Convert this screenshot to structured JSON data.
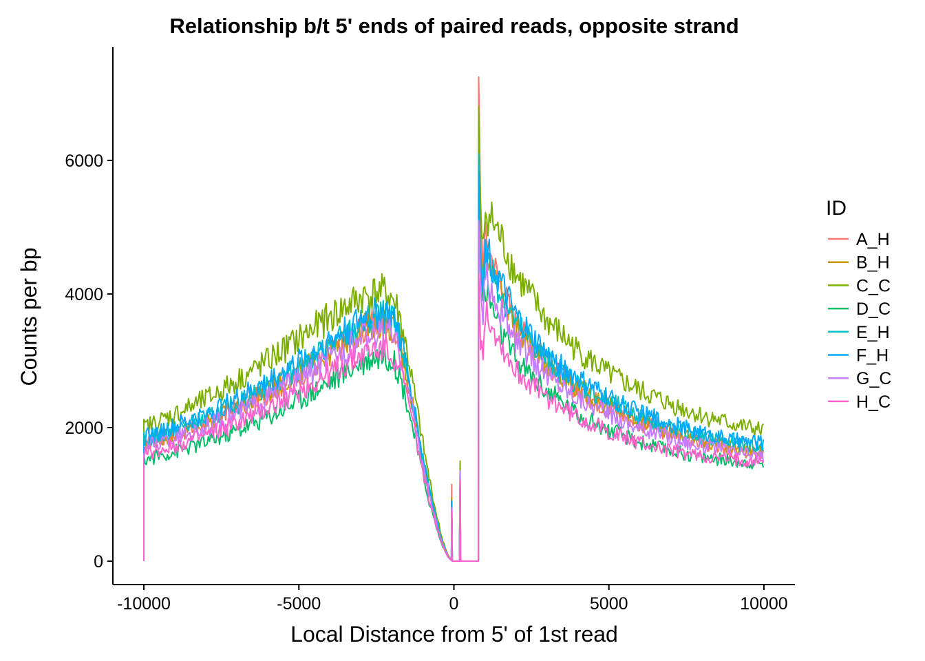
{
  "chart_data": {
    "type": "line",
    "title": "Relationship b/t 5' ends of paired reads, opposite strand",
    "xlabel": "Local Distance from 5' of 1st read",
    "ylabel": "Counts per bp",
    "xlim": [
      -11000,
      11000
    ],
    "ylim": [
      -350,
      7700
    ],
    "xticks": [
      -10000,
      -5000,
      0,
      5000,
      10000
    ],
    "xtick_labels": [
      "-10000",
      "-5000",
      "0",
      "5000",
      "10000"
    ],
    "yticks": [
      0,
      2000,
      4000,
      6000
    ],
    "ytick_labels": [
      "0",
      "2000",
      "4000",
      "6000"
    ],
    "grid": false,
    "legend": {
      "title": "ID",
      "position": "right"
    },
    "x": [
      -10000,
      -9000,
      -8000,
      -7000,
      -6000,
      -5000,
      -4000,
      -3000,
      -2500,
      -2200,
      -2000,
      -1800,
      -1600,
      -1400,
      -1200,
      -1000,
      -800,
      -600,
      -400,
      -200,
      -100,
      0,
      100,
      200,
      300,
      400,
      500,
      600,
      700,
      800,
      1000,
      1500,
      2000,
      3000,
      4000,
      5000,
      6000,
      7000,
      8000,
      9000,
      10000
    ],
    "series": [
      {
        "name": "A_H",
        "color": "#F8766D",
        "spike_dip": 1150,
        "spike_rise": 1100,
        "peak": 7250,
        "values": [
          1750,
          1900,
          2060,
          2280,
          2520,
          2800,
          3100,
          3440,
          3560,
          3560,
          3500,
          3320,
          2950,
          2500,
          2000,
          1500,
          1050,
          650,
          300,
          80,
          20,
          0,
          0,
          0,
          0,
          0,
          0,
          0,
          0,
          0,
          4850,
          4150,
          3550,
          2950,
          2570,
          2280,
          2070,
          1900,
          1770,
          1660,
          1600
        ]
      },
      {
        "name": "B_H",
        "color": "#CD9600",
        "spike_dip": 950,
        "spike_rise": 1200,
        "peak": 6300,
        "values": [
          1770,
          1920,
          2080,
          2300,
          2540,
          2830,
          3130,
          3460,
          3580,
          3580,
          3520,
          3340,
          2970,
          2520,
          2010,
          1510,
          1060,
          655,
          300,
          80,
          20,
          0,
          0,
          0,
          0,
          0,
          0,
          0,
          0,
          0,
          4700,
          4050,
          3520,
          2960,
          2600,
          2320,
          2110,
          1940,
          1810,
          1700,
          1640
        ]
      },
      {
        "name": "C_C",
        "color": "#7CAE00",
        "spike_dip": 900,
        "spike_rise": 1500,
        "peak": 6800,
        "values": [
          2000,
          2200,
          2420,
          2700,
          3000,
          3330,
          3650,
          3950,
          4020,
          4020,
          3950,
          3750,
          3350,
          2850,
          2300,
          1750,
          1250,
          780,
          370,
          100,
          25,
          0,
          0,
          0,
          0,
          0,
          0,
          0,
          0,
          0,
          5300,
          4850,
          4300,
          3600,
          3150,
          2800,
          2550,
          2350,
          2180,
          2050,
          1950
        ]
      },
      {
        "name": "D_C",
        "color": "#00BE67",
        "spike_dip": 900,
        "spike_rise": 1200,
        "peak": 6000,
        "values": [
          1520,
          1640,
          1780,
          1960,
          2160,
          2420,
          2690,
          2980,
          3080,
          3080,
          3020,
          2860,
          2540,
          2160,
          1720,
          1290,
          900,
          560,
          260,
          70,
          15,
          0,
          0,
          0,
          0,
          0,
          0,
          0,
          0,
          0,
          4100,
          3450,
          3000,
          2550,
          2200,
          1960,
          1780,
          1650,
          1560,
          1500,
          1460
        ]
      },
      {
        "name": "E_H",
        "color": "#00BFC4",
        "spike_dip": 850,
        "spike_rise": 1150,
        "peak": 6100,
        "values": [
          1800,
          1960,
          2130,
          2360,
          2610,
          2900,
          3210,
          3530,
          3650,
          3650,
          3590,
          3400,
          3030,
          2570,
          2050,
          1540,
          1080,
          670,
          310,
          85,
          20,
          0,
          0,
          0,
          0,
          0,
          0,
          0,
          0,
          0,
          4600,
          4050,
          3550,
          3000,
          2650,
          2380,
          2170,
          2000,
          1870,
          1760,
          1700
        ]
      },
      {
        "name": "F_H",
        "color": "#00A9FF",
        "spike_dip": 900,
        "spike_rise": 1200,
        "peak": 5800,
        "values": [
          1850,
          2010,
          2190,
          2420,
          2680,
          2980,
          3290,
          3600,
          3700,
          3700,
          3640,
          3450,
          3070,
          2600,
          2080,
          1560,
          1090,
          680,
          315,
          85,
          20,
          0,
          0,
          0,
          0,
          0,
          0,
          0,
          0,
          0,
          4750,
          4150,
          3650,
          3080,
          2720,
          2440,
          2220,
          2050,
          1920,
          1810,
          1760
        ]
      },
      {
        "name": "G_C",
        "color": "#C77CFF",
        "spike_dip": 800,
        "spike_rise": 1350,
        "peak": 5100,
        "values": [
          1700,
          1840,
          2000,
          2210,
          2450,
          2720,
          3010,
          3320,
          3430,
          3430,
          3370,
          3190,
          2840,
          2410,
          1920,
          1440,
          1010,
          630,
          290,
          80,
          18,
          0,
          0,
          0,
          0,
          0,
          0,
          0,
          0,
          0,
          4300,
          3750,
          3300,
          2800,
          2460,
          2200,
          2000,
          1850,
          1730,
          1640,
          1580
        ]
      },
      {
        "name": "H_C",
        "color": "#FF61CC",
        "spike_dip": 750,
        "spike_rise": 1200,
        "peak": 4300,
        "values": [
          1600,
          1730,
          1880,
          2070,
          2290,
          2540,
          2810,
          3080,
          3180,
          3180,
          3130,
          2960,
          2640,
          2240,
          1790,
          1340,
          940,
          585,
          270,
          75,
          15,
          0,
          0,
          0,
          0,
          0,
          0,
          0,
          0,
          0,
          3800,
          3250,
          2850,
          2450,
          2150,
          1930,
          1770,
          1650,
          1570,
          1520,
          1500
        ]
      }
    ]
  }
}
